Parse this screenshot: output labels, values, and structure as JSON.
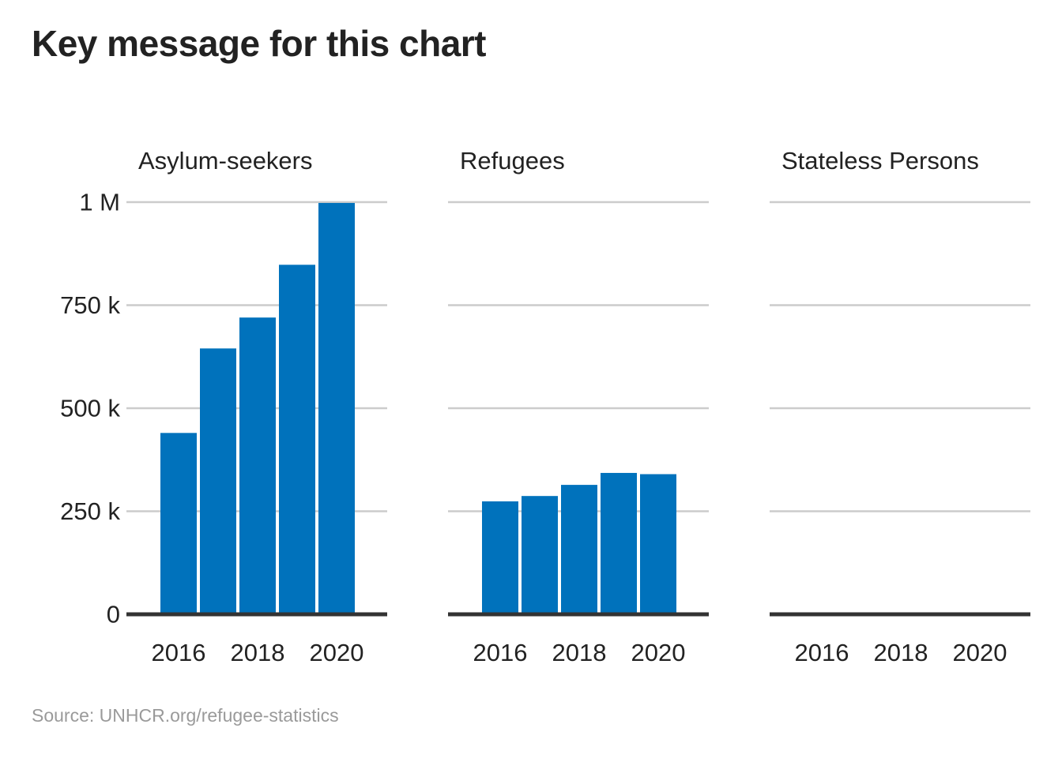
{
  "title": "Key message for this chart",
  "source": "Source: UNHCR.org/refugee-statistics",
  "colors": {
    "bar": "#0072bc",
    "grid": "#cccccc",
    "baseline": "#333333",
    "text": "#222222",
    "source": "#9a9a9a"
  },
  "chart_data": {
    "type": "bar",
    "layout": "small-multiples",
    "grid": true,
    "ylim": [
      0,
      1000000
    ],
    "y_ticks": [
      0,
      250000,
      500000,
      750000,
      1000000
    ],
    "y_tick_labels": [
      "0",
      "250 k",
      "500 k",
      "750 k",
      "1 M"
    ],
    "x_ticks": [
      2016,
      2018,
      2020
    ],
    "x_tick_labels": [
      "2016",
      "2018",
      "2020"
    ],
    "categories": [
      2016,
      2017,
      2018,
      2019,
      2020
    ],
    "facets": [
      {
        "name": "Asylum-seekers",
        "values": [
          440000,
          645000,
          720000,
          848000,
          998000
        ]
      },
      {
        "name": "Refugees",
        "values": [
          274000,
          287000,
          314000,
          343000,
          340000
        ]
      },
      {
        "name": "Stateless Persons",
        "values": [
          0,
          0,
          0,
          0,
          0
        ]
      }
    ]
  }
}
